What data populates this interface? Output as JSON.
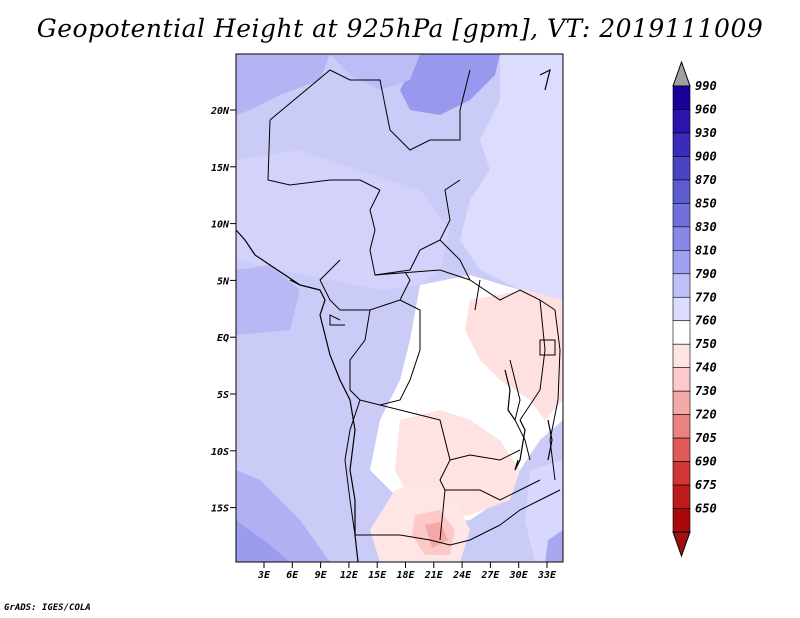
{
  "title": "Geopotential Height at 925hPa [gpm], VT: 2019111009",
  "credit": "GrADS: IGES/COLA",
  "map": {
    "lat_labels": [
      "20N",
      "15N",
      "10N",
      "5N",
      "EQ",
      "5S",
      "10S",
      "15S"
    ],
    "lon_labels": [
      "3E",
      "6E",
      "9E",
      "12E",
      "15E",
      "18E",
      "21E",
      "24E",
      "27E",
      "30E",
      "33E"
    ]
  },
  "colorbar": {
    "levels": [
      "990",
      "960",
      "930",
      "900",
      "870",
      "850",
      "830",
      "810",
      "790",
      "770",
      "760",
      "750",
      "740",
      "730",
      "720",
      "705",
      "690",
      "675",
      "650"
    ],
    "colors": [
      "#1a0099",
      "#2a14ac",
      "#3a2cb8",
      "#4a44c4",
      "#5a5ccf",
      "#7070db",
      "#8888e6",
      "#a0a0f0",
      "#c0c0f8",
      "#dcdcff",
      "#ffffff",
      "#ffe4e4",
      "#fccaca",
      "#f5a8a8",
      "#eb8282",
      "#e05a5a",
      "#d23535",
      "#be1c1c",
      "#a80a0a"
    ],
    "top_arrow_color": "#a0a0a0",
    "bottom_arrow_color": "#a01010"
  }
}
